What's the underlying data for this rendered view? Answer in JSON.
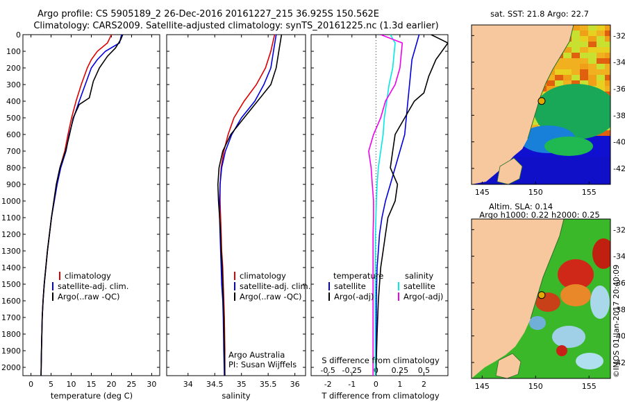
{
  "header": {
    "line1": "Argo profile: CS 5905189_2 26-Dec-2016 20161227_215 36.925S 150.562E",
    "line2": "Climatology: CARS2009. Satellite-adjusted climatology: synTS_20161225.nc (1.3d earlier)"
  },
  "colors": {
    "climatology": "#dd0000",
    "satellite": "#0000dd",
    "argo": "#000000",
    "s_satellite": "#00e8e8",
    "s_argo": "#ee00ee",
    "land": "#f7c89e"
  },
  "credit": {
    "institution": "Argo Australia",
    "pi": "PI: Susan Wijffels",
    "stamp": "©IMOS 01-Jan-2017 20:40:09"
  },
  "chart_data": [
    {
      "type": "line",
      "xlabel": "temperature (deg C)",
      "xlim": [
        -2,
        32
      ],
      "ylim": [
        0,
        2050
      ],
      "y_inverted": true,
      "xticks": [
        0,
        5,
        10,
        15,
        20,
        25,
        30
      ],
      "yticks": [
        0,
        100,
        200,
        300,
        400,
        500,
        600,
        700,
        800,
        900,
        1000,
        1100,
        1200,
        1300,
        1400,
        1500,
        1600,
        1700,
        1800,
        1900,
        2000
      ],
      "legend": {
        "position": "lower-right",
        "entries": [
          "climatology",
          "satellite-adj. clim.",
          "Argo(..raw -QC)"
        ]
      },
      "series": [
        {
          "name": "climatology",
          "color": "#dd0000",
          "x": [
            20.0,
            19.0,
            16.5,
            15.0,
            14.0,
            12.5,
            11.2,
            10.1,
            9.2,
            8.4,
            7.2,
            6.3,
            5.7,
            5.1,
            4.6,
            4.1,
            3.7,
            3.3,
            3.0,
            2.8,
            2.6,
            2.5
          ],
          "y": [
            0,
            50,
            100,
            150,
            200,
            300,
            400,
            500,
            600,
            700,
            800,
            900,
            1000,
            1100,
            1200,
            1300,
            1400,
            1500,
            1600,
            1700,
            1900,
            2050
          ]
        },
        {
          "name": "satellite-adj. clim.",
          "color": "#0000dd",
          "x": [
            22.5,
            22.0,
            18.5,
            16.5,
            15.0,
            13.5,
            12.0,
            10.6,
            9.5,
            8.7,
            7.4,
            6.5,
            5.8,
            5.1,
            4.6,
            4.1,
            3.7,
            3.3,
            3.0,
            2.8,
            2.6,
            2.5
          ],
          "y": [
            0,
            50,
            100,
            150,
            200,
            300,
            400,
            500,
            600,
            700,
            800,
            900,
            1000,
            1100,
            1200,
            1300,
            1400,
            1500,
            1600,
            1700,
            1900,
            2050
          ]
        },
        {
          "name": "Argo(..raw -QC)",
          "color": "#000000",
          "x": [
            22.8,
            22.3,
            21.0,
            19.0,
            17.0,
            15.5,
            14.5,
            12.0,
            10.5,
            9.6,
            8.6,
            7.2,
            6.3,
            5.7,
            5.1,
            4.6,
            4.1,
            3.7,
            3.3,
            3.0,
            2.8,
            2.6,
            2.5
          ],
          "y": [
            0,
            30,
            80,
            130,
            200,
            280,
            380,
            420,
            500,
            600,
            700,
            800,
            900,
            1000,
            1100,
            1200,
            1300,
            1400,
            1500,
            1600,
            1700,
            1900,
            2050
          ]
        }
      ]
    },
    {
      "type": "line",
      "xlabel": "salinity",
      "xlim": [
        33.6,
        36.2
      ],
      "ylim": [
        0,
        2050
      ],
      "y_inverted": true,
      "xticks": [
        34,
        34.5,
        35,
        35.5,
        36
      ],
      "legend": {
        "position": "lower-right",
        "entries": [
          "climatology",
          "satellite-adj. clim.",
          "Argo(..raw -QC)"
        ]
      },
      "series": [
        {
          "name": "climatology",
          "color": "#dd0000",
          "x": [
            35.62,
            35.55,
            35.45,
            35.28,
            35.05,
            34.86,
            34.75,
            34.67,
            34.62,
            34.6,
            34.6,
            34.61,
            34.62,
            34.63,
            34.65,
            34.66,
            34.67,
            34.68,
            34.69,
            34.69
          ],
          "y": [
            0,
            100,
            200,
            300,
            400,
            500,
            600,
            700,
            800,
            900,
            1000,
            1100,
            1200,
            1300,
            1400,
            1500,
            1600,
            1700,
            1900,
            2050
          ]
        },
        {
          "name": "satellite-adj. clim.",
          "color": "#0000dd",
          "x": [
            35.65,
            35.6,
            35.55,
            35.42,
            35.25,
            35.0,
            34.82,
            34.7,
            34.63,
            34.6,
            34.59,
            34.59,
            34.6,
            34.61,
            34.62,
            34.63,
            34.65,
            34.66,
            34.67,
            34.68
          ],
          "y": [
            0,
            100,
            200,
            300,
            400,
            500,
            600,
            700,
            800,
            900,
            1000,
            1100,
            1200,
            1300,
            1400,
            1500,
            1600,
            1700,
            1900,
            2050
          ]
        },
        {
          "name": "Argo(..raw -QC)",
          "color": "#000000",
          "x": [
            35.75,
            35.7,
            35.65,
            35.55,
            35.3,
            35.05,
            34.8,
            34.65,
            34.58,
            34.56,
            34.57,
            34.59,
            34.61,
            34.62,
            34.64,
            34.65,
            34.66,
            34.67,
            34.68,
            34.69
          ],
          "y": [
            0,
            100,
            200,
            300,
            400,
            500,
            600,
            700,
            800,
            900,
            1000,
            1100,
            1200,
            1300,
            1400,
            1500,
            1600,
            1700,
            1900,
            2050
          ]
        }
      ]
    },
    {
      "type": "line",
      "xlabel": "T difference from climatology",
      "x2label": "S difference from climatology",
      "xlim": [
        -2.7,
        3.0
      ],
      "x2lim": [
        -0.675,
        0.75
      ],
      "ylim": [
        0,
        2050
      ],
      "y_inverted": true,
      "xticks": [
        -2,
        -1,
        0,
        1,
        2
      ],
      "x2ticks": [
        "-0.5",
        "-0.25",
        "0",
        "0.25",
        "0.5"
      ],
      "legend": {
        "position": "lower-center",
        "left_title": "temperature",
        "right_title": "salinity",
        "entries": [
          "satellite",
          "Argo(-adj)",
          "satellite",
          "Argo(-adj)"
        ]
      },
      "series": [
        {
          "name": "satellite",
          "quantity": "temperature",
          "color": "#0000dd",
          "x": [
            1.8,
            1.7,
            1.5,
            1.4,
            1.3,
            1.2,
            1.0,
            0.8,
            0.6,
            0.4,
            0.25,
            0.15,
            0.1,
            0.05,
            0.03,
            0.02,
            0.02,
            0.01,
            0.0
          ],
          "y": [
            0,
            50,
            150,
            300,
            450,
            600,
            700,
            800,
            900,
            1000,
            1100,
            1200,
            1300,
            1400,
            1500,
            1600,
            1700,
            1900,
            2050
          ]
        },
        {
          "name": "Argo(-adj)",
          "quantity": "temperature",
          "color": "#000000",
          "x": [
            2.3,
            3.0,
            2.5,
            2.2,
            2.0,
            1.6,
            1.2,
            0.8,
            0.7,
            0.6,
            0.9,
            0.8,
            0.5,
            0.4,
            0.3,
            0.2,
            0.1,
            0.05,
            0.0
          ],
          "y": [
            0,
            50,
            150,
            250,
            350,
            400,
            500,
            600,
            700,
            800,
            900,
            1000,
            1100,
            1200,
            1300,
            1400,
            1600,
            1800,
            2050
          ]
        },
        {
          "name": "satellite",
          "quantity": "salinity",
          "color": "#00e8e8",
          "x": [
            0.6,
            0.8,
            0.7,
            0.55,
            0.45,
            0.35,
            0.3,
            0.2,
            0.1,
            0.05,
            0.02,
            0.0,
            -0.02,
            -0.03,
            -0.03,
            -0.03
          ],
          "y": [
            0,
            50,
            200,
            300,
            400,
            500,
            600,
            700,
            800,
            900,
            1000,
            1100,
            1200,
            1500,
            1800,
            2050
          ]
        },
        {
          "name": "Argo(-adj)",
          "quantity": "salinity",
          "color": "#ee00ee",
          "x": [
            0.2,
            1.1,
            1.0,
            0.8,
            0.4,
            0.2,
            -0.1,
            -0.3,
            -0.2,
            -0.15,
            -0.1,
            -0.1,
            -0.12,
            -0.12,
            -0.12,
            -0.12
          ],
          "y": [
            0,
            50,
            200,
            300,
            400,
            500,
            600,
            700,
            800,
            900,
            1000,
            1100,
            1200,
            1500,
            1800,
            2050
          ]
        }
      ]
    },
    {
      "type": "heatmap",
      "title": "sat. SST: 21.8  Argo: 22.7",
      "xlim": [
        144,
        157
      ],
      "ylim": [
        -43.2,
        -31.2
      ],
      "xticks": [
        145,
        150,
        155
      ],
      "yticks": [
        -32,
        -34,
        -36,
        -38,
        -40,
        -42
      ],
      "marker": {
        "lon": 150.562,
        "lat": -36.925
      }
    },
    {
      "type": "heatmap",
      "title_line1": "Altim. SLA: 0.14",
      "title_line2": "Argo h1000: 0.22  h2000: 0.25",
      "xlim": [
        144,
        157
      ],
      "ylim": [
        -43.2,
        -31.2
      ],
      "xticks": [
        145,
        150,
        155
      ],
      "yticks": [
        -32,
        -34,
        -36,
        -38,
        -40,
        -42
      ],
      "marker": {
        "lon": 150.562,
        "lat": -36.925
      }
    }
  ]
}
